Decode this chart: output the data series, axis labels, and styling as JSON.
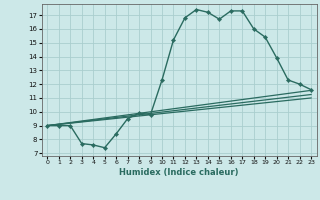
{
  "xlabel": "Humidex (Indice chaleur)",
  "background_color": "#cce8e8",
  "grid_color": "#aacece",
  "line_color": "#2a6b60",
  "xlim": [
    -0.5,
    23.5
  ],
  "ylim": [
    6.8,
    17.8
  ],
  "yticks": [
    7,
    8,
    9,
    10,
    11,
    12,
    13,
    14,
    15,
    16,
    17
  ],
  "xticks": [
    0,
    1,
    2,
    3,
    4,
    5,
    6,
    7,
    8,
    9,
    10,
    11,
    12,
    13,
    14,
    15,
    16,
    17,
    18,
    19,
    20,
    21,
    22,
    23
  ],
  "line1_x": [
    0,
    1,
    2,
    3,
    4,
    5,
    6,
    7,
    8,
    9,
    10,
    11,
    12,
    13,
    14,
    15,
    16,
    17,
    18,
    19,
    20,
    21,
    22,
    23
  ],
  "line1_y": [
    9.0,
    9.0,
    9.0,
    7.7,
    7.6,
    7.4,
    8.4,
    9.5,
    9.9,
    9.8,
    12.3,
    15.2,
    16.8,
    17.4,
    17.2,
    16.7,
    17.3,
    17.3,
    16.0,
    15.4,
    13.9,
    12.3,
    12.0,
    11.6
  ],
  "line2_x": [
    0,
    23
  ],
  "line2_y": [
    9.0,
    11.55
  ],
  "line3_x": [
    0,
    23
  ],
  "line3_y": [
    9.0,
    11.25
  ],
  "line4_x": [
    0,
    23
  ],
  "line4_y": [
    9.0,
    11.0
  ]
}
